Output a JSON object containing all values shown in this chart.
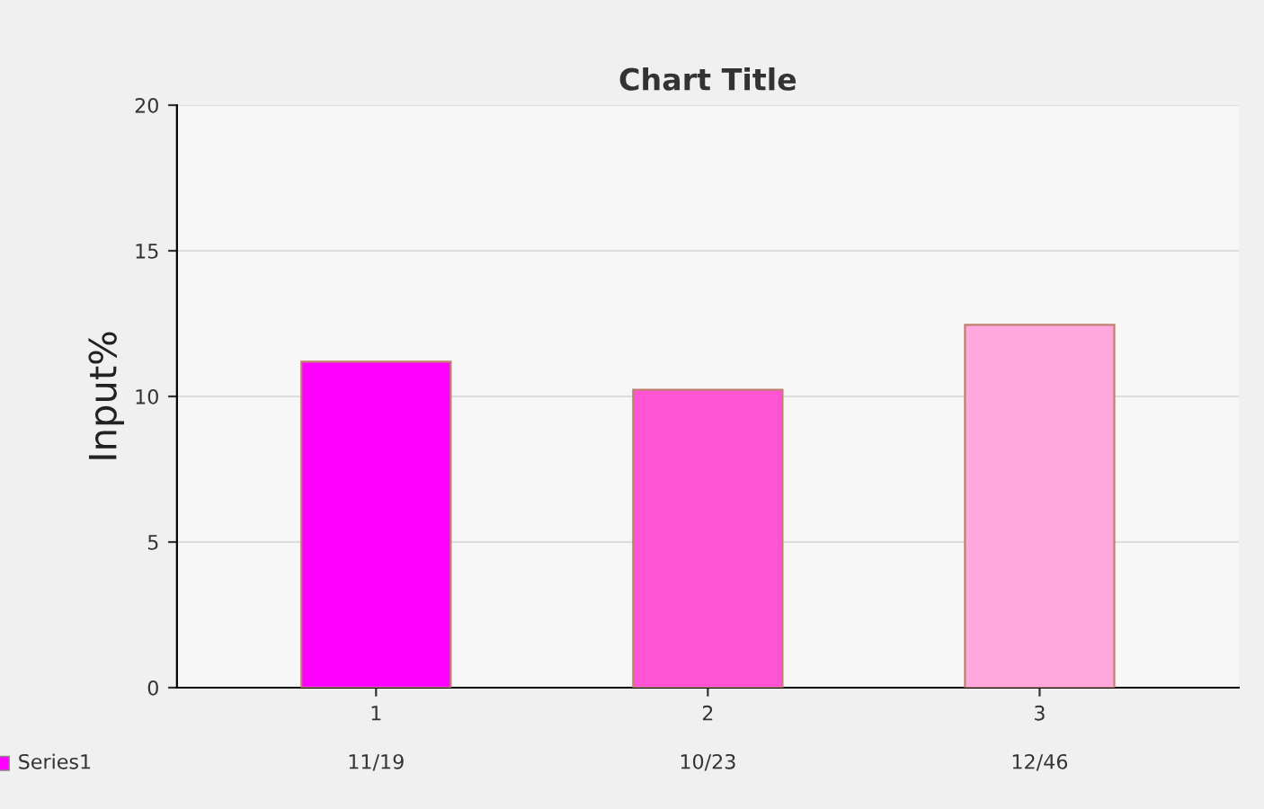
{
  "chart_data": {
    "type": "bar",
    "title": "Chart Title",
    "ylabel": "Input%",
    "categories": [
      "1",
      "2",
      "3"
    ],
    "series": [
      {
        "name": "Series1",
        "colors": [
          "#ff00ff",
          "#ff55d4",
          "#ffa8e0"
        ],
        "values": [
          11.19,
          10.23,
          12.46
        ],
        "value_labels": [
          "11/19",
          "10/23",
          "12/46"
        ]
      }
    ],
    "ylim": [
      0,
      20
    ],
    "yticks": [
      0,
      5,
      10,
      15,
      20
    ],
    "grid": "y"
  }
}
